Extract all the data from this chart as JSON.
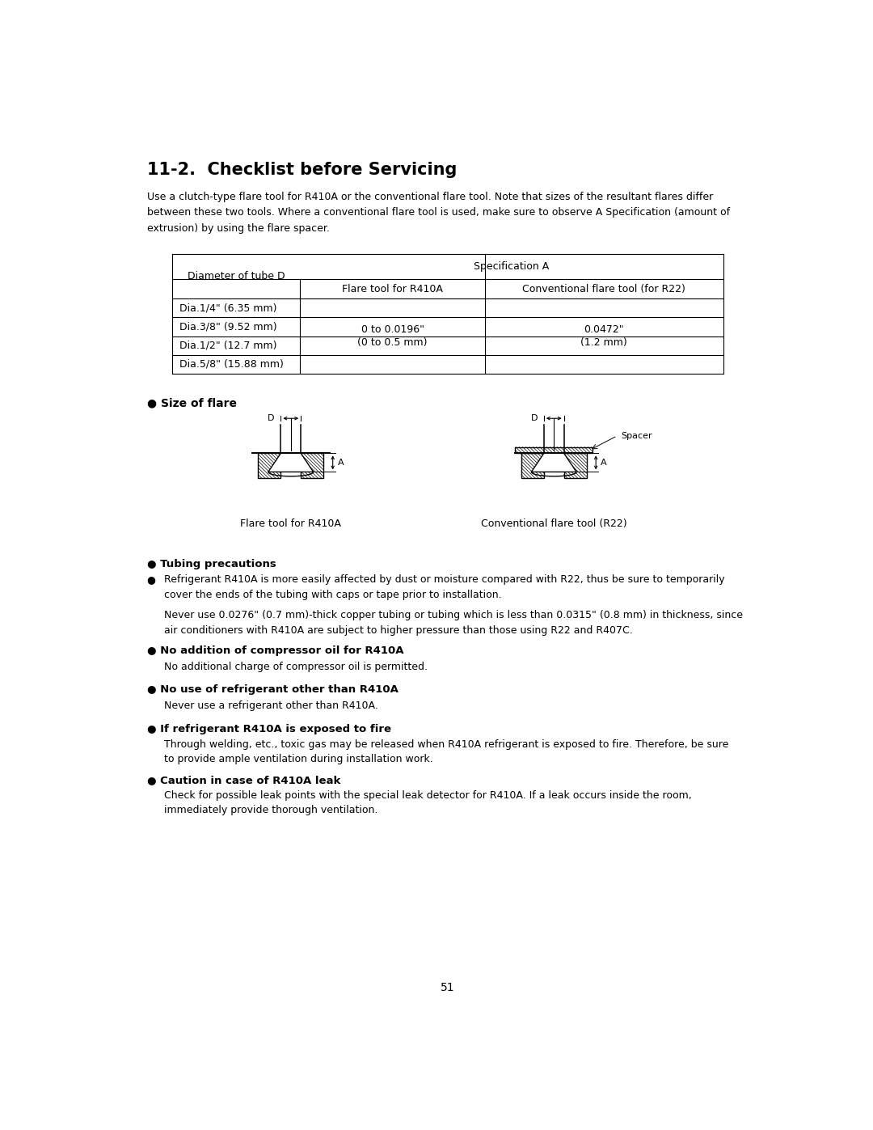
{
  "title": "11-2.  Checklist before Servicing",
  "intro_text": "Use a clutch-type flare tool for R410A or the conventional flare tool. Note that sizes of the resultant flares differ\nbetween these two tools. Where a conventional flare tool is used, make sure to observe A Specification (amount of\nextrusion) by using the flare spacer.",
  "table_col0_rows": [
    "Dia.1/4\" (6.35 mm)",
    "Dia.3/8\" (9.52 mm)",
    "Dia.1/2\" (12.7 mm)",
    "Dia.5/8\" (15.88 mm)"
  ],
  "table_val1_line1": "0 to 0.0196\"",
  "table_val1_line2": "(0 to 0.5 mm)",
  "table_val2_line1": "0.0472\"",
  "table_val2_line2": "(1.2 mm)",
  "size_of_flare_label": "● Size of flare",
  "flare_label1": "Flare tool for R410A",
  "flare_label2": "Conventional flare tool (R22)",
  "spacer_label": "Spacer",
  "bullet_sections": [
    {
      "heading": "● Tubing precautions",
      "bold": true,
      "body": "",
      "indent_body": true
    },
    {
      "heading": "●",
      "bold": false,
      "body": "Refrigerant R410A is more easily affected by dust or moisture compared with R22, thus be sure to temporarily\ncover the ends of the tubing with caps or tape prior to installation.",
      "indent_body": true
    },
    {
      "heading": "",
      "bold": false,
      "body": "Never use 0.0276\" (0.7 mm)-thick copper tubing or tubing which is less than 0.0315\" (0.8 mm) in thickness, since\nair conditioners with R410A are subject to higher pressure than those using R22 and R407C.",
      "indent_body": true
    },
    {
      "heading": "● No addition of compressor oil for R410A",
      "bold": true,
      "body": "No additional charge of compressor oil is permitted.",
      "indent_body": true
    },
    {
      "heading": "● No use of refrigerant other than R410A",
      "bold": true,
      "body": "Never use a refrigerant other than R410A.",
      "indent_body": true
    },
    {
      "heading": "● If refrigerant R410A is exposed to fire",
      "bold": true,
      "body": "Through welding, etc., toxic gas may be released when R410A refrigerant is exposed to fire. Therefore, be sure\nto provide ample ventilation during installation work.",
      "indent_body": true
    },
    {
      "heading": "● Caution in case of R410A leak",
      "bold": true,
      "body": "Check for possible leak points with the special leak detector for R410A. If a leak occurs inside the room,\nimmediately provide thorough ventilation.",
      "indent_body": true
    }
  ],
  "page_number": "51",
  "bg_color": "#ffffff",
  "text_color": "#000000",
  "line_color": "#000000"
}
